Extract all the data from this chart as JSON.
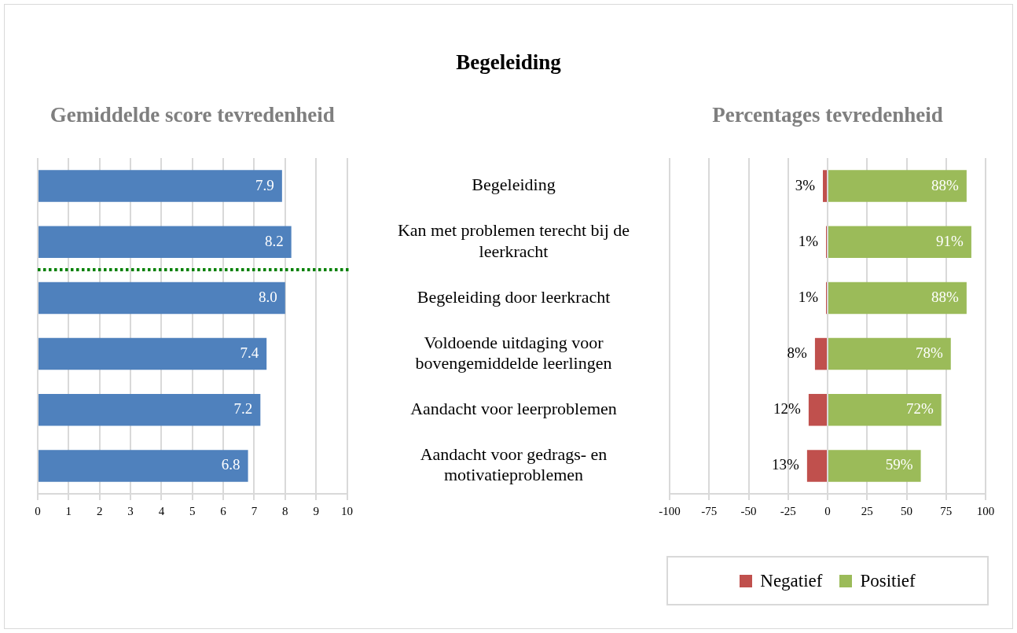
{
  "chart_data": [
    {
      "type": "other",
      "title": "Begeleiding"
    },
    {
      "type": "bar",
      "title": "Gemiddelde score tevredenheid",
      "orientation": "horizontal",
      "categories": [
        null,
        null,
        null,
        null,
        null,
        null
      ],
      "values": [
        7.9,
        8.2,
        8,
        7.4,
        7.2,
        6.8
      ],
      "value_labels": [
        "7.9",
        "8.2",
        "8.0",
        "7.4",
        "7.2",
        "6.8"
      ],
      "color": "#4f81bd",
      "xlim": [
        0,
        10
      ],
      "xticks": [
        0,
        1,
        2,
        3,
        4,
        5,
        6,
        7,
        8,
        9,
        10
      ],
      "grid": "x"
    },
    {
      "type": "bar",
      "title": "Percentages tevredenheid",
      "orientation": "horizontal",
      "categories": [
        "Begeleiding",
        "Kan met problemen terecht bij de leerkracht",
        "Begeleiding door leerkracht",
        "Voldoende uitdaging voor bovengemiddelde leerlingen",
        "Aandacht voor leerproblemen",
        "Aandacht voor gedrags- en motivatieproblemen"
      ],
      "series": [
        {
          "name": "Negatief",
          "color": "#c0504d",
          "values": [
            3,
            1,
            1,
            8,
            12,
            13
          ],
          "base": [
            -3,
            -1,
            -1,
            -8,
            -12,
            -13
          ],
          "value_labels": [
            "3%",
            "1%",
            "1%",
            "8%",
            "12%",
            "13%"
          ]
        },
        {
          "name": "Positief",
          "color": "#9bbb59",
          "values": [
            88,
            91,
            88,
            78,
            72,
            59
          ],
          "value_labels": [
            "88%",
            "91%",
            "88%",
            "78%",
            "72%",
            "59%"
          ]
        }
      ],
      "xlim": [
        -100,
        100
      ],
      "xticks": [
        -100,
        -75,
        -50,
        -25,
        0,
        25,
        50,
        75,
        100
      ],
      "grid": "x",
      "legend": "bottom"
    }
  ]
}
